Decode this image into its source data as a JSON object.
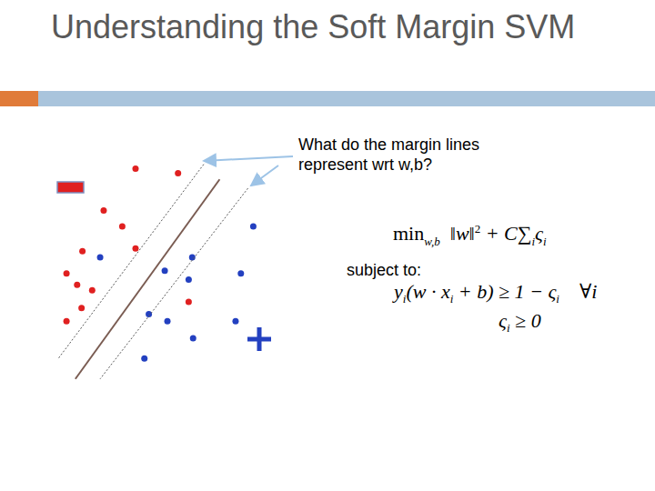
{
  "slide": {
    "title": "Understanding the Soft Margin SVM",
    "question": "What do the margin lines represent wrt w,b?",
    "subject_to": "subject to:",
    "objective": [
      {
        "text": "min",
        "sub": "w,b"
      },
      {
        "text": "  ‖w‖",
        "sup": "2"
      },
      {
        "text": " + C"
      },
      {
        "text": "∑",
        "sub": "i"
      },
      {
        "text": "ς",
        "sub": "i"
      }
    ],
    "constraints": [
      [
        {
          "text": "y",
          "sub": "i"
        },
        {
          "text": "(w · x",
          "sub": "i"
        },
        {
          "text": " + b) ≥ 1 − "
        },
        {
          "text": "ς",
          "sub": "i"
        },
        {
          "text": "    ∀i"
        }
      ],
      [
        {
          "text": "ς",
          "sub": "i"
        },
        {
          "text": " ≥ 0"
        }
      ]
    ]
  },
  "chart_data": {
    "type": "scatter",
    "xlim": [
      0,
      260
    ],
    "ylim": [
      0,
      285
    ],
    "xticks": [
      0,
      260
    ],
    "yticks": [
      0,
      285
    ],
    "grid": false,
    "tick_labels": false,
    "series": [
      {
        "type": "line",
        "color": "#555555",
        "line_style": "dotted",
        "marker": "none",
        "x": [
          170,
          5
        ],
        "values": [
          252,
          32
        ]
      },
      {
        "type": "line",
        "color": "#7a5c52",
        "line_style": "solid",
        "marker": "none",
        "x": [
          188,
          25
        ],
        "values": [
          235,
          10
        ]
      },
      {
        "type": "line",
        "color": "#555555",
        "line_style": "dotted",
        "marker": "none",
        "x": [
          220,
          53
        ],
        "values": [
          225,
          10
        ]
      },
      {
        "type": "scatter",
        "color": "#e02020",
        "marker": "circle",
        "x": [
          93,
          141,
          57,
          78,
          33,
          93,
          15,
          27,
          44,
          32,
          15,
          153
        ],
        "values": [
          247,
          242,
          200,
          182,
          154,
          157,
          129,
          116,
          110,
          90,
          75,
          97
        ]
      },
      {
        "type": "scatter",
        "color": "#2340c0",
        "marker": "circle",
        "x": [
          226,
          53,
          157,
          126,
          153,
          212,
          108,
          129,
          158,
          206,
          103
        ],
        "values": [
          182,
          147,
          147,
          132,
          122,
          129,
          83,
          75,
          56,
          75,
          33
        ]
      }
    ]
  }
}
